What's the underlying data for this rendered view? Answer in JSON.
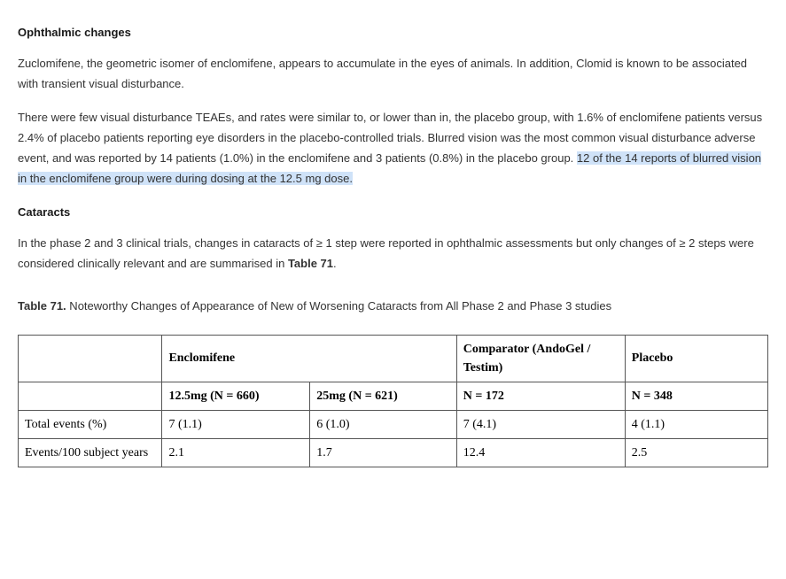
{
  "headings": {
    "ophthalmic": "Ophthalmic changes",
    "cataracts": "Cataracts"
  },
  "paragraphs": {
    "p1": "Zuclomifene, the geometric isomer of enclomifene, appears to accumulate in the eyes of animals. In addition, Clomid is known to be associated with transient visual disturbance.",
    "p2_plain": "There were few visual disturbance TEAEs, and rates were similar to, or lower than in, the placebo group, with 1.6% of enclomifene patients versus 2.4% of placebo patients reporting eye disorders in the placebo-controlled trials. Blurred vision was the most common visual disturbance adverse event, and was reported by 14 patients (1.0%) in the enclomifene and 3 patients (0.8%) in the placebo group. ",
    "p2_highlight": "12 of the 14 reports of blurred vision in the enclomifene group were during dosing at the 12.5 mg dose.",
    "p3_a": "In the phase 2 and 3 clinical trials, changes in cataracts of ≥ 1 step were reported in ophthalmic assessments but only changes of ≥ 2 steps were considered clinically relevant and are summarised in ",
    "p3_b": "Table 71",
    "p3_c": "."
  },
  "table_caption": {
    "number": "Table 71.",
    "text": " Noteworthy Changes of Appearance of New of Worsening Cataracts from All Phase 2 and Phase 3 studies"
  },
  "table": {
    "top_headers": {
      "blank": "",
      "enclomifene": "Enclomifene",
      "comparator": "Comparator (AndoGel / Testim)",
      "placebo": "Placebo"
    },
    "sub_headers": {
      "blank": "",
      "enc125": "12.5mg (N = 660)",
      "enc25": "25mg (N = 621)",
      "comp_n": "N = 172",
      "plac_n": "N = 348"
    },
    "rows": [
      {
        "label": "Total events (%)",
        "enc125": "7 (1.1)",
        "enc25": "6 (1.0)",
        "comp": "7 (4.1)",
        "plac": "4 (1.1)"
      },
      {
        "label": "Events/100 subject years",
        "enc125": "2.1",
        "enc25": "1.7",
        "comp": "12.4",
        "plac": "2.5"
      }
    ]
  }
}
